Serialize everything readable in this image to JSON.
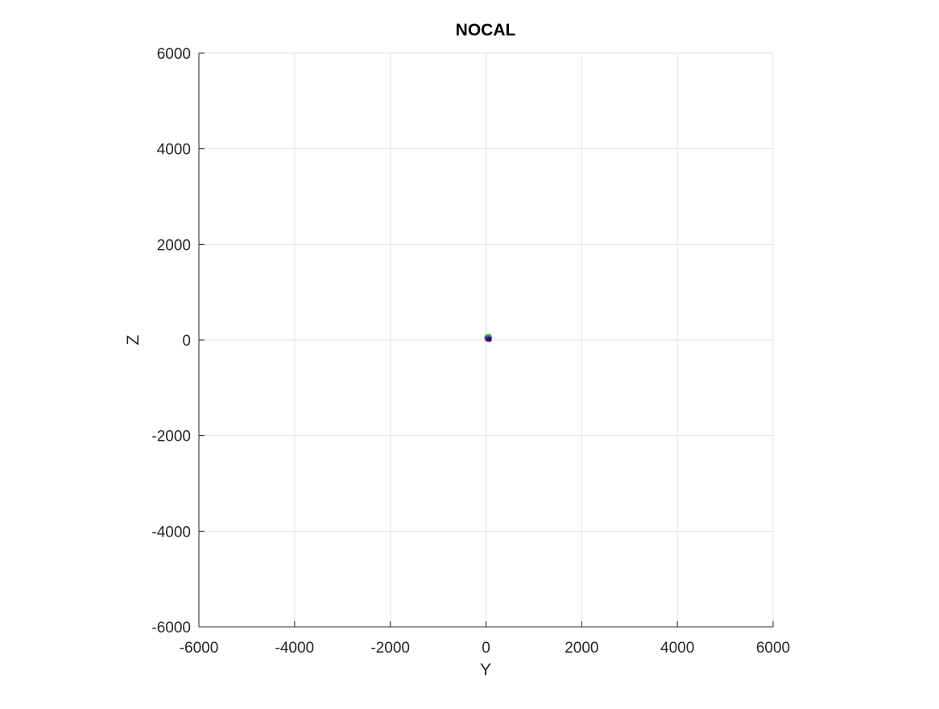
{
  "chart_data": {
    "type": "scatter",
    "title": "NOCAL",
    "xlabel": "Y",
    "ylabel": "Z",
    "xlim": [
      -6000,
      6000
    ],
    "ylim": [
      -6000,
      6000
    ],
    "xticks": [
      -6000,
      -4000,
      -2000,
      0,
      2000,
      4000,
      6000
    ],
    "yticks": [
      -6000,
      -4000,
      -2000,
      0,
      2000,
      4000,
      6000
    ],
    "xtick_labels": [
      "-6000",
      "-4000",
      "-2000",
      "0",
      "2000",
      "4000",
      "6000"
    ],
    "ytick_labels": [
      "-6000",
      "-4000",
      "-2000",
      "0",
      "2000",
      "4000",
      "6000"
    ],
    "grid": true,
    "points": [
      {
        "x": 40,
        "y": 90,
        "color": "#fde725"
      },
      {
        "x": 70,
        "y": 85,
        "color": "#b5de2b"
      },
      {
        "x": 20,
        "y": 75,
        "color": "#6ece58"
      },
      {
        "x": 60,
        "y": 70,
        "color": "#35b779"
      },
      {
        "x": 35,
        "y": 55,
        "color": "#1f9e89"
      },
      {
        "x": 75,
        "y": 50,
        "color": "#26828e"
      },
      {
        "x": 15,
        "y": 40,
        "color": "#31688e"
      },
      {
        "x": 55,
        "y": 30,
        "color": "#3e4989"
      },
      {
        "x": 30,
        "y": 15,
        "color": "#482878"
      },
      {
        "x": 70,
        "y": 10,
        "color": "#440154"
      }
    ]
  }
}
